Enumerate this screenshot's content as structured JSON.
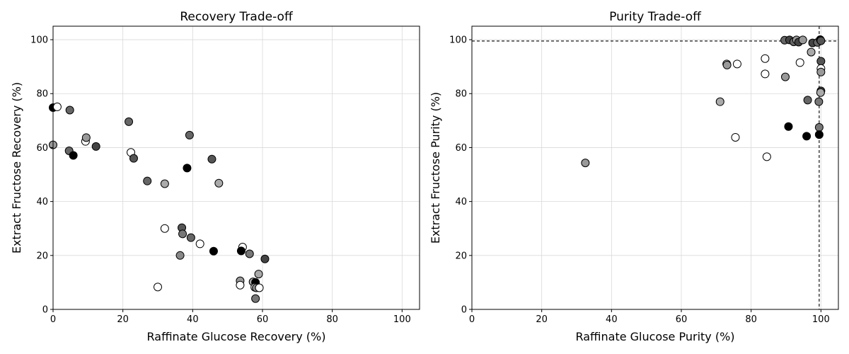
{
  "chart_data": [
    {
      "type": "scatter",
      "title": "Recovery Trade-off",
      "xlabel": "Raffinate Glucose Recovery (%)",
      "ylabel": "Extract Fructose Recovery (%)",
      "xlim": [
        0,
        105
      ],
      "ylim": [
        0,
        105
      ],
      "xticks": [
        "0",
        "20",
        "40",
        "60",
        "80",
        "100"
      ],
      "yticks": [
        "0",
        "20",
        "40",
        "60",
        "80",
        "100"
      ],
      "grid": true,
      "marker": "circle, black edge, grayscale fill",
      "points": [
        {
          "x": 0.0,
          "y": 74.8,
          "fill": "#000000"
        },
        {
          "x": 1.2,
          "y": 75.1,
          "fill": "#ffffff"
        },
        {
          "x": 4.8,
          "y": 73.9,
          "fill": "#666666"
        },
        {
          "x": 0.0,
          "y": 61.0,
          "fill": "#999999"
        },
        {
          "x": 4.6,
          "y": 58.8,
          "fill": "#666666"
        },
        {
          "x": 5.8,
          "y": 57.1,
          "fill": "#000000"
        },
        {
          "x": 9.3,
          "y": 62.3,
          "fill": "#ffffff"
        },
        {
          "x": 9.5,
          "y": 63.7,
          "fill": "#999999"
        },
        {
          "x": 12.3,
          "y": 60.4,
          "fill": "#444444"
        },
        {
          "x": 21.7,
          "y": 69.6,
          "fill": "#666666"
        },
        {
          "x": 22.3,
          "y": 58.2,
          "fill": "#ffffff"
        },
        {
          "x": 23.1,
          "y": 56.0,
          "fill": "#555555"
        },
        {
          "x": 27.0,
          "y": 47.6,
          "fill": "#666666"
        },
        {
          "x": 32.0,
          "y": 46.6,
          "fill": "#aaaaaa"
        },
        {
          "x": 38.4,
          "y": 52.4,
          "fill": "#000000"
        },
        {
          "x": 39.1,
          "y": 64.6,
          "fill": "#666666"
        },
        {
          "x": 45.5,
          "y": 55.7,
          "fill": "#555555"
        },
        {
          "x": 47.5,
          "y": 46.8,
          "fill": "#aaaaaa"
        },
        {
          "x": 32.0,
          "y": 30.0,
          "fill": "#ffffff"
        },
        {
          "x": 36.9,
          "y": 30.3,
          "fill": "#555555"
        },
        {
          "x": 37.1,
          "y": 28.0,
          "fill": "#777777"
        },
        {
          "x": 39.5,
          "y": 26.6,
          "fill": "#666666"
        },
        {
          "x": 42.1,
          "y": 24.3,
          "fill": "#ffffff"
        },
        {
          "x": 36.4,
          "y": 20.0,
          "fill": "#888888"
        },
        {
          "x": 46.0,
          "y": 21.6,
          "fill": "#000000"
        },
        {
          "x": 30.0,
          "y": 8.3,
          "fill": "#ffffff"
        },
        {
          "x": 54.3,
          "y": 23.1,
          "fill": "#ffffff"
        },
        {
          "x": 53.9,
          "y": 21.7,
          "fill": "#000000"
        },
        {
          "x": 56.3,
          "y": 20.6,
          "fill": "#777777"
        },
        {
          "x": 60.7,
          "y": 18.7,
          "fill": "#444444"
        },
        {
          "x": 53.6,
          "y": 10.6,
          "fill": "#999999"
        },
        {
          "x": 53.6,
          "y": 9.0,
          "fill": "#ffffff"
        },
        {
          "x": 57.3,
          "y": 10.2,
          "fill": "#aaaaaa"
        },
        {
          "x": 58.0,
          "y": 10.0,
          "fill": "#000000"
        },
        {
          "x": 58.9,
          "y": 13.1,
          "fill": "#aaaaaa"
        },
        {
          "x": 57.8,
          "y": 8.2,
          "fill": "#ffffff"
        },
        {
          "x": 58.2,
          "y": 8.0,
          "fill": "#888888"
        },
        {
          "x": 59.1,
          "y": 8.0,
          "fill": "#ffffff"
        },
        {
          "x": 58.0,
          "y": 4.0,
          "fill": "#777777"
        }
      ]
    },
    {
      "type": "scatter",
      "title": "Purity Trade-off",
      "xlabel": "Raffinate Glucose Purity (%)",
      "ylabel": "Extract Fructose Purity (%)",
      "xlim": [
        0,
        105
      ],
      "ylim": [
        0,
        105
      ],
      "xticks": [
        "0",
        "20",
        "40",
        "60",
        "80",
        "100"
      ],
      "yticks": [
        "0",
        "20",
        "40",
        "60",
        "80",
        "100"
      ],
      "grid": true,
      "reference_lines": [
        {
          "orientation": "horizontal",
          "value": 99.5,
          "style": "dashed",
          "color": "#000000"
        },
        {
          "orientation": "vertical",
          "value": 99.5,
          "style": "dashed",
          "color": "#000000"
        }
      ],
      "points": [
        {
          "x": 32.5,
          "y": 54.3,
          "fill": "#999999"
        },
        {
          "x": 71.1,
          "y": 77.0,
          "fill": "#aaaaaa"
        },
        {
          "x": 73.0,
          "y": 91.0,
          "fill": "#ffffff"
        },
        {
          "x": 73.1,
          "y": 90.6,
          "fill": "#999999"
        },
        {
          "x": 76.0,
          "y": 91.0,
          "fill": "#ffffff"
        },
        {
          "x": 75.5,
          "y": 63.8,
          "fill": "#ffffff"
        },
        {
          "x": 84.0,
          "y": 93.0,
          "fill": "#ffffff"
        },
        {
          "x": 84.0,
          "y": 87.3,
          "fill": "#ffffff"
        },
        {
          "x": 84.5,
          "y": 56.6,
          "fill": "#ffffff"
        },
        {
          "x": 89.8,
          "y": 86.2,
          "fill": "#999999"
        },
        {
          "x": 90.7,
          "y": 67.8,
          "fill": "#000000"
        },
        {
          "x": 89.6,
          "y": 99.8,
          "fill": "#666666"
        },
        {
          "x": 91.0,
          "y": 99.9,
          "fill": "#444444"
        },
        {
          "x": 92.2,
          "y": 99.2,
          "fill": "#666666"
        },
        {
          "x": 93.0,
          "y": 99.9,
          "fill": "#999999"
        },
        {
          "x": 93.6,
          "y": 99.1,
          "fill": "#444444"
        },
        {
          "x": 94.0,
          "y": 91.5,
          "fill": "#ffffff"
        },
        {
          "x": 94.8,
          "y": 99.9,
          "fill": "#999999"
        },
        {
          "x": 95.9,
          "y": 64.2,
          "fill": "#000000"
        },
        {
          "x": 96.2,
          "y": 77.6,
          "fill": "#666666"
        },
        {
          "x": 97.2,
          "y": 95.4,
          "fill": "#aaaaaa"
        },
        {
          "x": 97.6,
          "y": 98.8,
          "fill": "#444444"
        },
        {
          "x": 99.0,
          "y": 99.0,
          "fill": "#666666"
        },
        {
          "x": 99.4,
          "y": 77.0,
          "fill": "#777777"
        },
        {
          "x": 99.5,
          "y": 67.5,
          "fill": "#777777"
        },
        {
          "x": 99.5,
          "y": 64.8,
          "fill": "#000000"
        },
        {
          "x": 99.8,
          "y": 100.0,
          "fill": "#000000"
        },
        {
          "x": 100.0,
          "y": 99.6,
          "fill": "#555555"
        },
        {
          "x": 100.0,
          "y": 92.0,
          "fill": "#555555"
        },
        {
          "x": 100.0,
          "y": 89.3,
          "fill": "#ffffff"
        },
        {
          "x": 100.0,
          "y": 88.0,
          "fill": "#999999"
        },
        {
          "x": 100.0,
          "y": 81.0,
          "fill": "#444444"
        },
        {
          "x": 99.9,
          "y": 80.4,
          "fill": "#aaaaaa"
        }
      ]
    }
  ]
}
